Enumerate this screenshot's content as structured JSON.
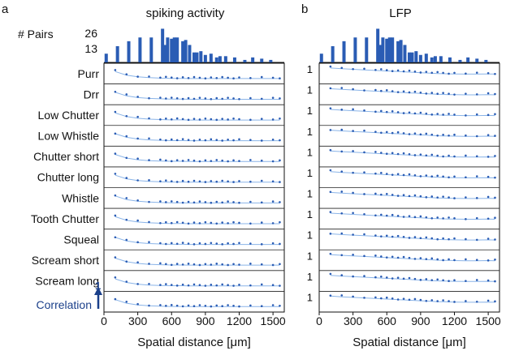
{
  "panels": {
    "a": {
      "letter": "a",
      "title": "spiking activity"
    },
    "b": {
      "letter": "b",
      "title": "LFP"
    }
  },
  "histogram": {
    "ylabel": "# Pairs",
    "yticks": [
      "26",
      "13"
    ],
    "ymax": 26,
    "bin_centers": [
      20,
      120,
      220,
      320,
      420,
      520,
      545,
      565,
      600,
      625,
      650,
      700,
      725,
      760,
      800,
      825,
      860,
      900,
      950,
      1000,
      1030,
      1080,
      1160,
      1250,
      1320,
      1400,
      1480
    ],
    "counts": [
      7,
      13,
      17,
      20,
      20,
      27,
      14,
      20,
      19,
      20,
      20,
      17,
      18,
      14,
      8,
      8,
      9,
      6,
      7,
      4,
      5,
      5,
      4,
      2,
      4,
      3,
      2
    ]
  },
  "conditions": [
    "Purr",
    "Drr",
    "Low Chutter",
    "Low Whistle",
    "Chutter short",
    "Chutter long",
    "Whistle",
    "Tooth Chutter",
    "Squeal",
    "Scream short",
    "Scream long"
  ],
  "correlation_label": "Correlation",
  "correlation_tick": "1",
  "lfp_row_tick": "1",
  "x_axis": {
    "label": "Spatial distance [μm]",
    "ticks": [
      0,
      300,
      600,
      900,
      1200,
      1500
    ],
    "xlim": [
      0,
      1600
    ]
  },
  "chart_data": [
    {
      "type": "scatter",
      "title": "spiking activity",
      "panel": "a",
      "xlabel": "Spatial distance [μm]",
      "ylabel": "Correlation",
      "xlim": [
        0,
        1600
      ],
      "series_per_row": [
        "Purr",
        "Drr",
        "Low Chutter",
        "Low Whistle",
        "Chutter short",
        "Chutter long",
        "Whistle",
        "Tooth Chutter",
        "Squeal",
        "Scream short",
        "Scream long"
      ],
      "x": [
        100,
        200,
        300,
        400,
        500,
        550,
        600,
        650,
        700,
        750,
        800,
        850,
        900,
        950,
        1000,
        1050,
        1100,
        1150,
        1200,
        1300,
        1400,
        1500,
        1560
      ],
      "y_normalized": [
        0.7,
        0.45,
        0.33,
        0.27,
        0.24,
        0.23,
        0.22,
        0.22,
        0.22,
        0.21,
        0.21,
        0.21,
        0.21,
        0.21,
        0.21,
        0.21,
        0.21,
        0.21,
        0.21,
        0.21,
        0.21,
        0.21,
        0.21
      ]
    },
    {
      "type": "scatter",
      "title": "LFP",
      "panel": "b",
      "xlabel": "Spatial distance [μm]",
      "ylabel": "Correlation",
      "xlim": [
        0,
        1600
      ],
      "series_per_row": [
        "Purr",
        "Drr",
        "Low Chutter",
        "Low Whistle",
        "Chutter short",
        "Chutter long",
        "Whistle",
        "Tooth Chutter",
        "Squeal",
        "Scream short",
        "Scream long"
      ],
      "x": [
        100,
        200,
        300,
        400,
        500,
        550,
        600,
        650,
        700,
        750,
        800,
        850,
        900,
        950,
        1000,
        1050,
        1100,
        1150,
        1200,
        1300,
        1400,
        1500,
        1560
      ],
      "y_normalized": [
        0.95,
        0.9,
        0.86,
        0.82,
        0.78,
        0.76,
        0.74,
        0.72,
        0.7,
        0.68,
        0.66,
        0.64,
        0.62,
        0.6,
        0.58,
        0.56,
        0.55,
        0.54,
        0.53,
        0.52,
        0.52,
        0.53,
        0.52
      ]
    }
  ],
  "colors": {
    "bar": "#2a5cb4",
    "point": "#2a5cb4",
    "fit": "#8ab4e8",
    "divider": "#222222"
  }
}
